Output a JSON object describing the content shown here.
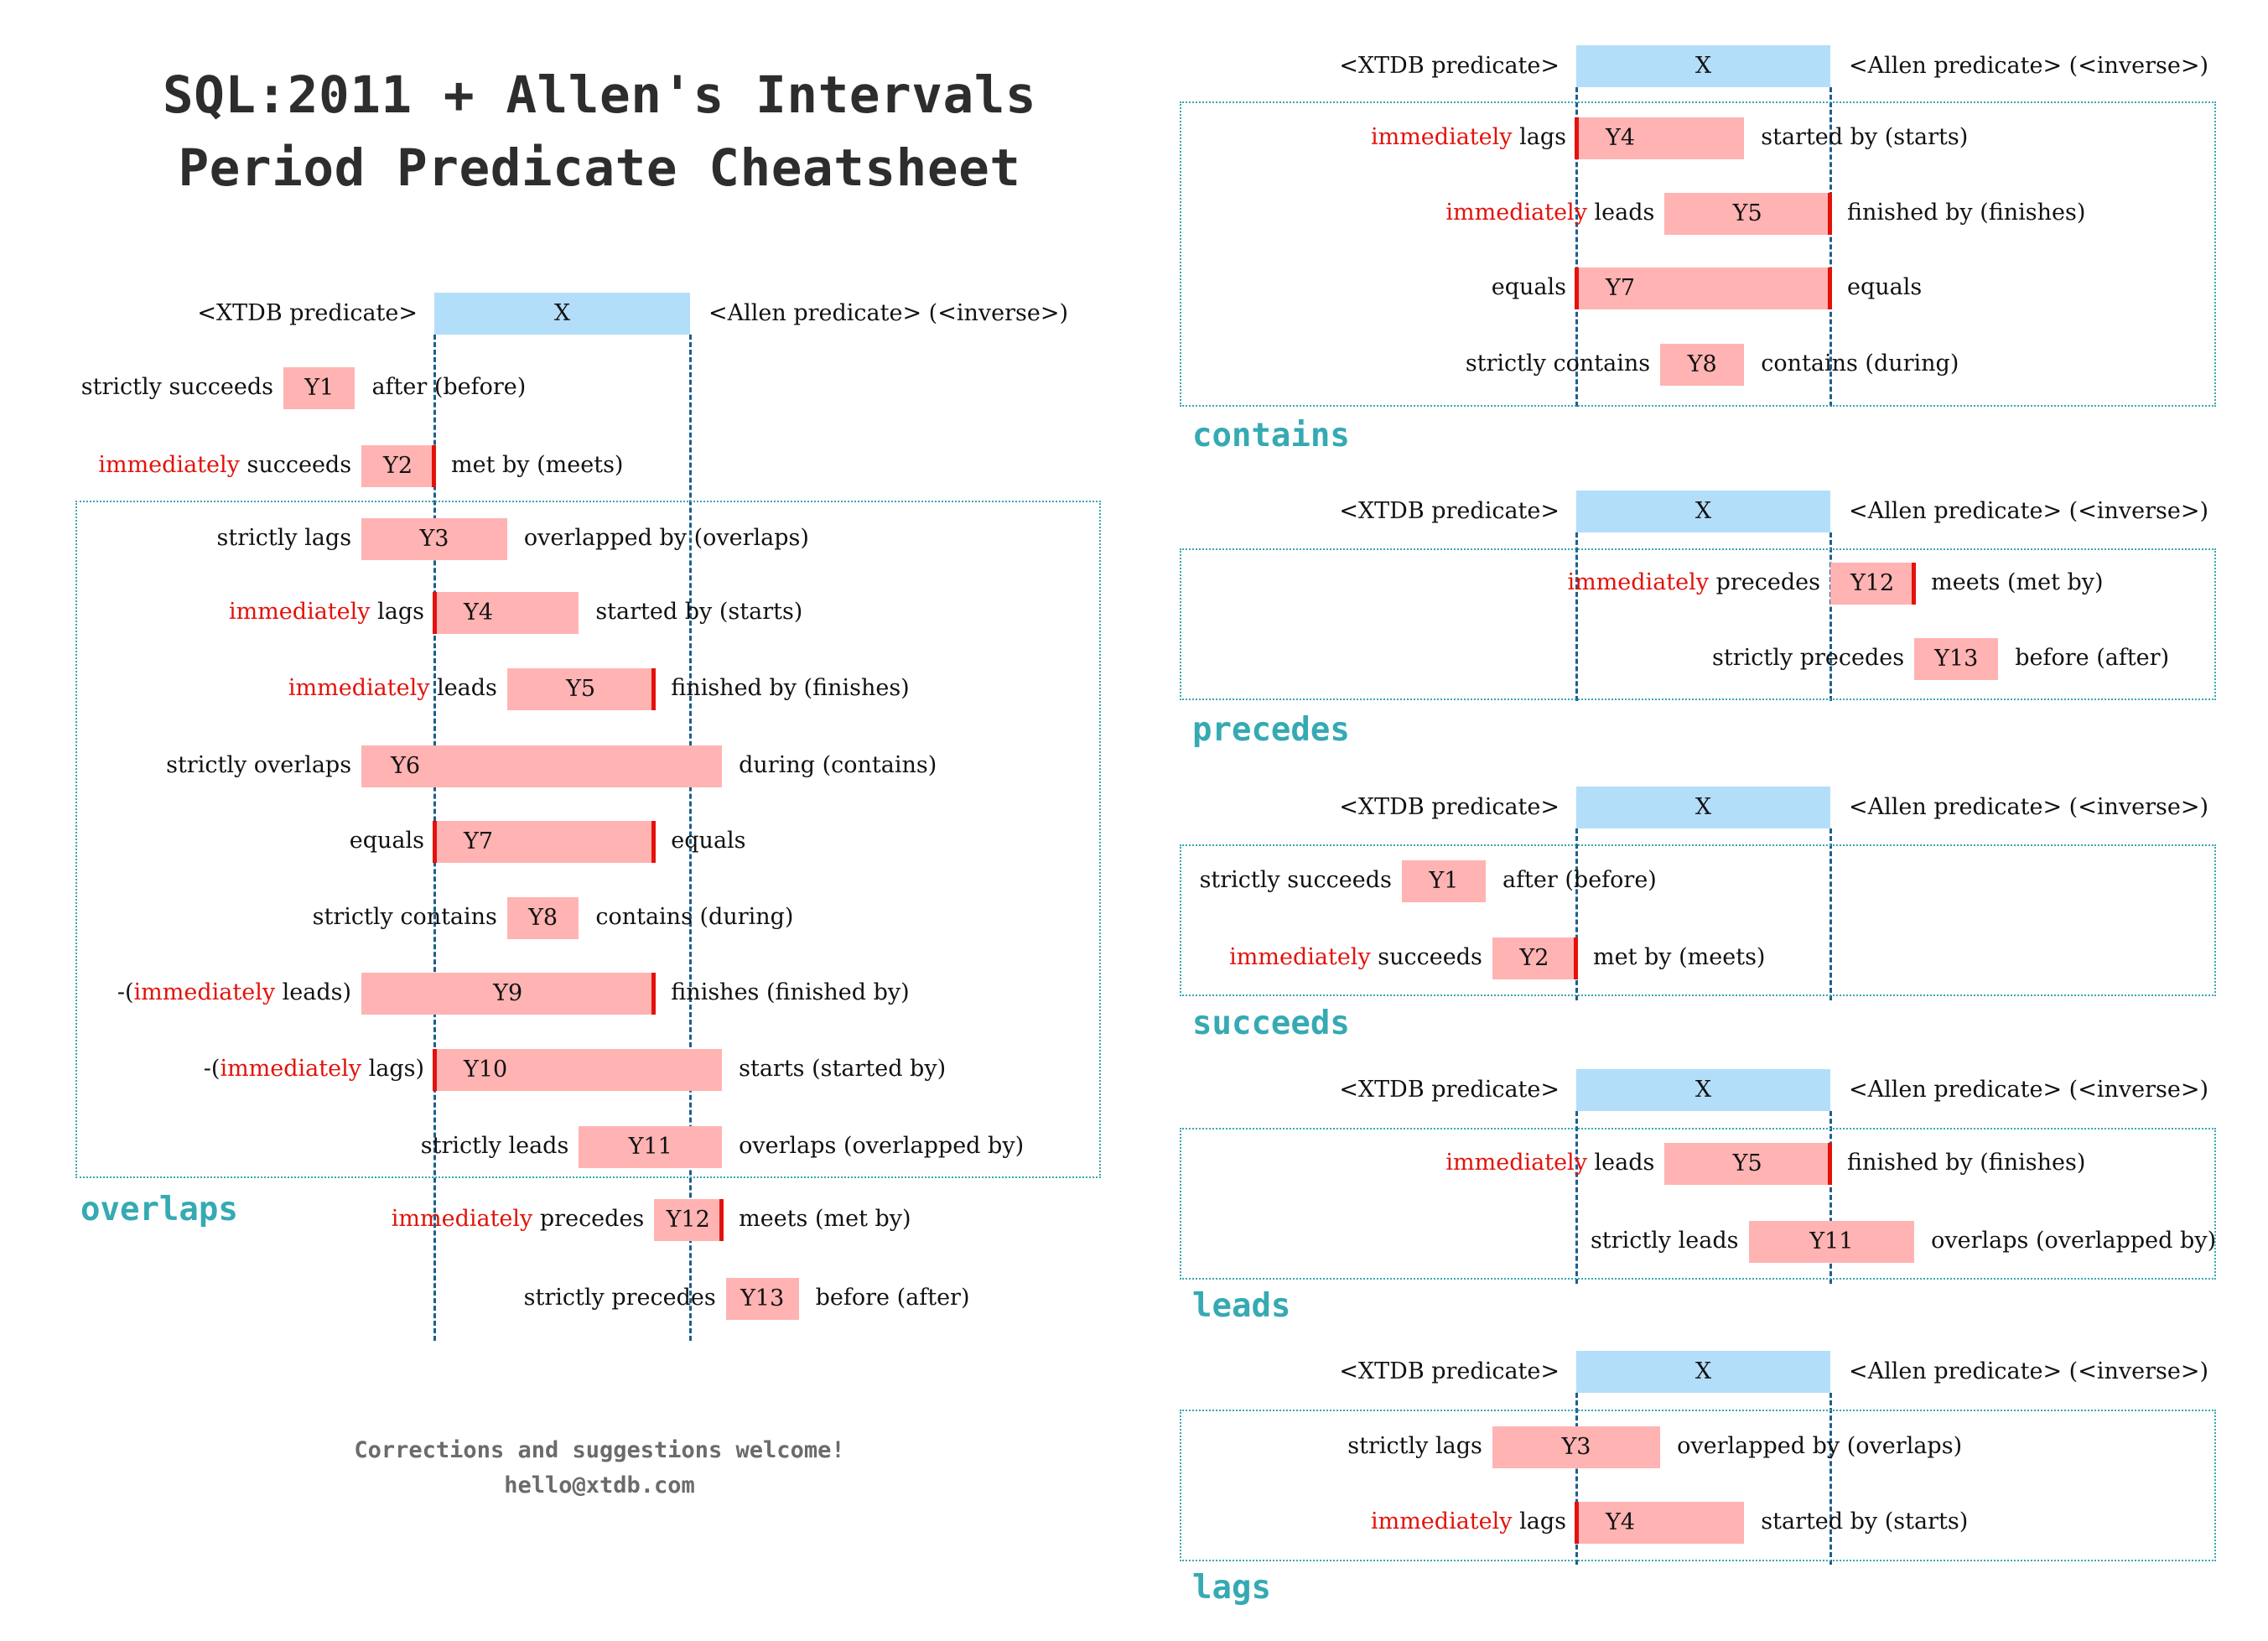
{
  "title": [
    "SQL:2011 + Allen's Intervals",
    "Period Predicate Cheatsheet"
  ],
  "footer": [
    "Corrections and suggestions welcome!",
    "hello@xtdb.com"
  ],
  "header_row": {
    "left": "<XTDB predicate>",
    "bar": "X",
    "right": "<Allen predicate> (<inverse>)"
  },
  "colors": {
    "x_bar": "#b3defa",
    "y_bar": "#ffb3b3",
    "edge": "#e3120b",
    "dashed": "#1f5f8b",
    "group": "#3aa7b0",
    "highlight": "#e3120b"
  },
  "relations": {
    "Y1": {
      "pre": "",
      "hl": "",
      "post": "strictly succeeds",
      "allen": "after (before)"
    },
    "Y2": {
      "pre": "",
      "hl": "immediately",
      "post": " succeeds",
      "allen": "met by (meets)"
    },
    "Y3": {
      "pre": "",
      "hl": "",
      "post": "strictly lags",
      "allen": "overlapped by (overlaps)"
    },
    "Y4": {
      "pre": "",
      "hl": "immediately",
      "post": " lags",
      "allen": "started by (starts)"
    },
    "Y5": {
      "pre": "",
      "hl": "immediately",
      "post": " leads",
      "allen": "finished by (finishes)"
    },
    "Y6": {
      "pre": "",
      "hl": "",
      "post": "strictly overlaps",
      "allen": "during (contains)"
    },
    "Y7": {
      "pre": "",
      "hl": "",
      "post": "equals",
      "allen": "equals"
    },
    "Y8": {
      "pre": "",
      "hl": "",
      "post": "strictly contains",
      "allen": "contains (during)"
    },
    "Y9": {
      "pre": "-(",
      "hl": "immediately",
      "post": " leads)",
      "allen": "finishes (finished by)"
    },
    "Y10": {
      "pre": "-(",
      "hl": "immediately",
      "post": " lags)",
      "allen": "starts (started by)"
    },
    "Y11": {
      "pre": "",
      "hl": "",
      "post": "strictly leads",
      "allen": "overlaps (overlapped by)"
    },
    "Y12": {
      "pre": "",
      "hl": "immediately",
      "post": " precedes",
      "allen": "meets (met by)"
    },
    "Y13": {
      "pre": "",
      "hl": "",
      "post": "strictly precedes",
      "allen": "before (after)"
    }
  },
  "main_diagram": {
    "rows": [
      "Y1",
      "Y2",
      "Y3",
      "Y4",
      "Y5",
      "Y6",
      "Y7",
      "Y8",
      "Y9",
      "Y10",
      "Y11",
      "Y12",
      "Y13"
    ],
    "group": "overlaps"
  },
  "side_diagrams": [
    {
      "name": "contains",
      "rows": [
        "Y4",
        "Y5",
        "Y7",
        "Y8"
      ]
    },
    {
      "name": "precedes",
      "rows": [
        "Y12",
        "Y13"
      ]
    },
    {
      "name": "succeeds",
      "rows": [
        "Y1",
        "Y2"
      ]
    },
    {
      "name": "leads",
      "rows": [
        "Y5",
        "Y11"
      ]
    },
    {
      "name": "lags",
      "rows": [
        "Y3",
        "Y4"
      ]
    }
  ]
}
